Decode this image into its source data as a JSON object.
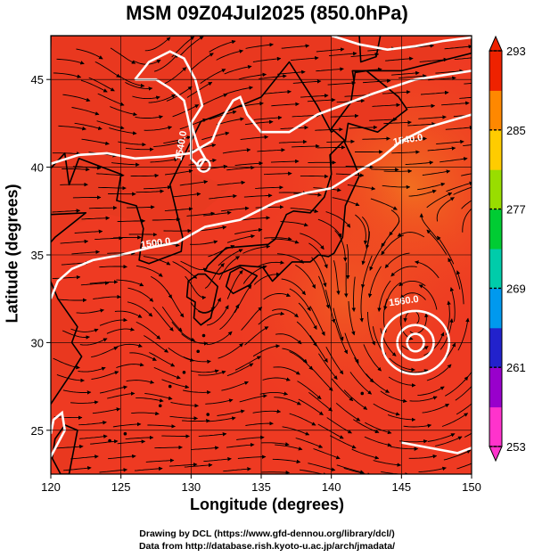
{
  "title": "MSM 09Z04Jul2025 (850.0hPa)",
  "xaxis": {
    "label": "Longitude (degrees)",
    "range": [
      120,
      150
    ],
    "ticks": [
      "120",
      "125",
      "130",
      "135",
      "140",
      "145",
      "150"
    ]
  },
  "yaxis": {
    "label": "Latitude  (degrees)",
    "range": [
      22.5,
      47.5
    ],
    "ticks": [
      "25",
      "30",
      "35",
      "40",
      "45"
    ]
  },
  "colorbar": {
    "range": [
      253,
      293
    ],
    "ticks": [
      "253",
      "261",
      "269",
      "277",
      "285",
      "293"
    ],
    "colors": [
      "#ff33cc",
      "#9900cc",
      "#2222cc",
      "#0099ee",
      "#00ccaa",
      "#00cc33",
      "#99dd00",
      "#ffcc00",
      "#ff8800",
      "#ee2200"
    ]
  },
  "contour_labels": [
    "1540.0",
    "1500.0",
    "1560.0",
    "1540.0"
  ],
  "credits": [
    "Drawing by DCL (https://www.gfd-dennou.org/library/dcl/)",
    "Data from http://database.rish.kyoto-u.ac.jp/arch/jmadata/"
  ],
  "colors": {
    "field_warm": "#f0401f",
    "field_base": "#ee3a22",
    "field_orange": "#f26a1e",
    "coast": "#000000",
    "contour": "#ffffff"
  },
  "icons": [
    "streamline-arrows",
    "colorbar-triangle-up",
    "colorbar-triangle-down"
  ]
}
